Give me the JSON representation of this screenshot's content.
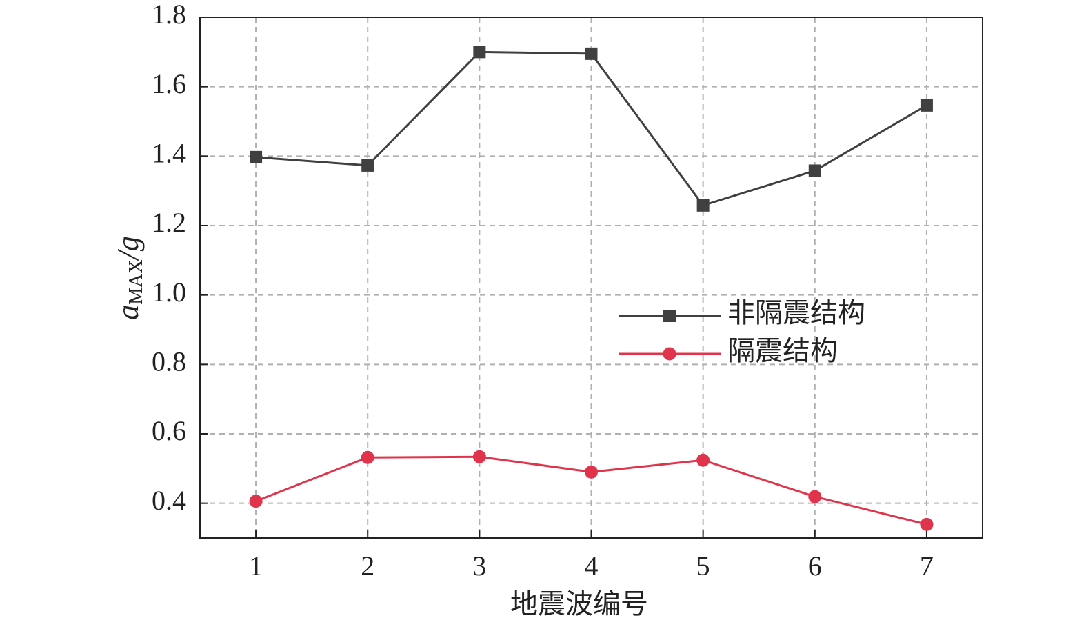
{
  "chart_data": {
    "type": "line",
    "ylabel": [
      "a",
      "MAX",
      "/g"
    ],
    "xlabel": "地震波编号",
    "x": [
      1,
      2,
      3,
      4,
      5,
      6,
      7
    ],
    "xlim": [
      0.5,
      7.5
    ],
    "xticks": [
      1,
      2,
      3,
      4,
      5,
      6,
      7
    ],
    "ylim": [
      0.3,
      1.8
    ],
    "yticks": [
      0.4,
      0.6,
      0.8,
      {
        "value": 1,
        "label": "1.0"
      },
      1.2,
      1.4,
      1.6,
      1.8
    ],
    "grid": true,
    "legend": "right",
    "series": [
      {
        "name": "非隔震结构",
        "color": "#404040",
        "marker": "square",
        "values": [
          1.397,
          1.373,
          1.7,
          1.695,
          1.258,
          1.358,
          1.546
        ]
      },
      {
        "name": "隔震结构",
        "color": "#e0344c",
        "marker": "circle",
        "values": [
          0.406,
          0.532,
          0.534,
          0.49,
          0.524,
          0.419,
          0.339
        ]
      }
    ]
  }
}
